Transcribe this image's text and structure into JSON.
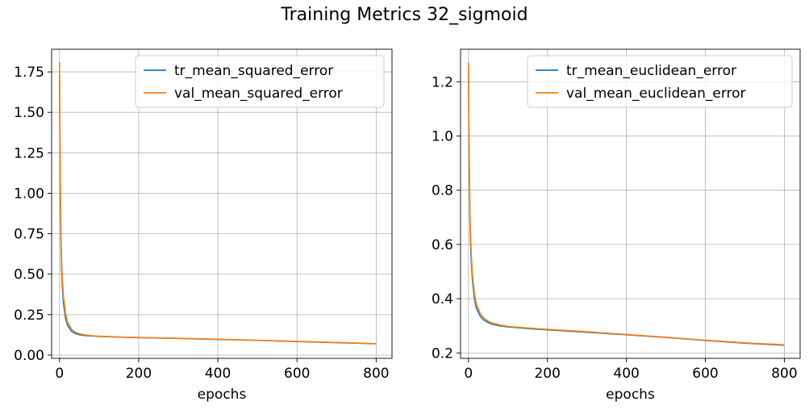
{
  "figure": {
    "title": "Training Metrics 32_sigmoid"
  },
  "colors": {
    "series1": "#1f77b4",
    "series2": "#ff7f0e",
    "grid": "#b0b0b0",
    "axis": "#000000"
  },
  "chart_data": [
    {
      "type": "line",
      "title": "",
      "xlabel": "epochs",
      "ylabel": "",
      "xlim": [
        -20,
        840
      ],
      "ylim": [
        -0.02,
        1.89
      ],
      "xticks": [
        0,
        200,
        400,
        600,
        800
      ],
      "yticks": [
        0.0,
        0.25,
        0.5,
        0.75,
        1.0,
        1.25,
        1.5,
        1.75
      ],
      "ytick_labels": [
        "0.00",
        "0.25",
        "0.50",
        "0.75",
        "1.00",
        "1.25",
        "1.50",
        "1.75"
      ],
      "grid": true,
      "legend": "upper-right",
      "series": [
        {
          "name": "tr_mean_squared_error",
          "color": "#1f77b4",
          "x": [
            0,
            1,
            2,
            3,
            4,
            5,
            7,
            10,
            15,
            20,
            30,
            40,
            50,
            60,
            80,
            100,
            150,
            200,
            300,
            400,
            500,
            600,
            700,
            800
          ],
          "y": [
            1.73,
            1.3,
            0.98,
            0.78,
            0.64,
            0.54,
            0.42,
            0.32,
            0.23,
            0.185,
            0.148,
            0.133,
            0.126,
            0.122,
            0.118,
            0.115,
            0.111,
            0.108,
            0.103,
            0.097,
            0.091,
            0.084,
            0.077,
            0.07
          ]
        },
        {
          "name": "val_mean_squared_error",
          "color": "#ff7f0e",
          "x": [
            0,
            1,
            2,
            3,
            4,
            5,
            7,
            10,
            15,
            20,
            30,
            40,
            50,
            60,
            80,
            100,
            150,
            200,
            300,
            400,
            500,
            600,
            700,
            800
          ],
          "y": [
            1.81,
            1.4,
            1.08,
            0.86,
            0.71,
            0.6,
            0.47,
            0.36,
            0.26,
            0.205,
            0.16,
            0.141,
            0.132,
            0.126,
            0.12,
            0.117,
            0.112,
            0.109,
            0.104,
            0.098,
            0.092,
            0.085,
            0.078,
            0.071
          ]
        }
      ]
    },
    {
      "type": "line",
      "title": "",
      "xlabel": "epochs",
      "ylabel": "",
      "xlim": [
        -20,
        840
      ],
      "ylim": [
        0.18,
        1.32
      ],
      "xticks": [
        0,
        200,
        400,
        600,
        800
      ],
      "yticks": [
        0.2,
        0.4,
        0.6,
        0.8,
        1.0,
        1.2
      ],
      "ytick_labels": [
        "0.2",
        "0.4",
        "0.6",
        "0.8",
        "1.0",
        "1.2"
      ],
      "grid": true,
      "legend": "upper-right",
      "series": [
        {
          "name": "tr_mean_euclidean_error",
          "color": "#1f77b4",
          "x": [
            0,
            1,
            2,
            3,
            4,
            5,
            7,
            10,
            15,
            20,
            30,
            40,
            50,
            60,
            80,
            100,
            150,
            200,
            300,
            400,
            500,
            600,
            700,
            800
          ],
          "y": [
            1.25,
            1.04,
            0.88,
            0.77,
            0.68,
            0.62,
            0.54,
            0.47,
            0.4,
            0.365,
            0.335,
            0.32,
            0.312,
            0.306,
            0.3,
            0.296,
            0.29,
            0.285,
            0.276,
            0.267,
            0.257,
            0.246,
            0.236,
            0.228
          ]
        },
        {
          "name": "val_mean_euclidean_error",
          "color": "#ff7f0e",
          "x": [
            0,
            1,
            2,
            3,
            4,
            5,
            7,
            10,
            15,
            20,
            30,
            40,
            50,
            60,
            80,
            100,
            150,
            200,
            300,
            400,
            500,
            600,
            700,
            800
          ],
          "y": [
            1.27,
            1.08,
            0.92,
            0.8,
            0.71,
            0.65,
            0.57,
            0.49,
            0.42,
            0.38,
            0.345,
            0.327,
            0.317,
            0.31,
            0.303,
            0.298,
            0.292,
            0.287,
            0.278,
            0.268,
            0.258,
            0.247,
            0.237,
            0.23
          ]
        }
      ]
    }
  ]
}
